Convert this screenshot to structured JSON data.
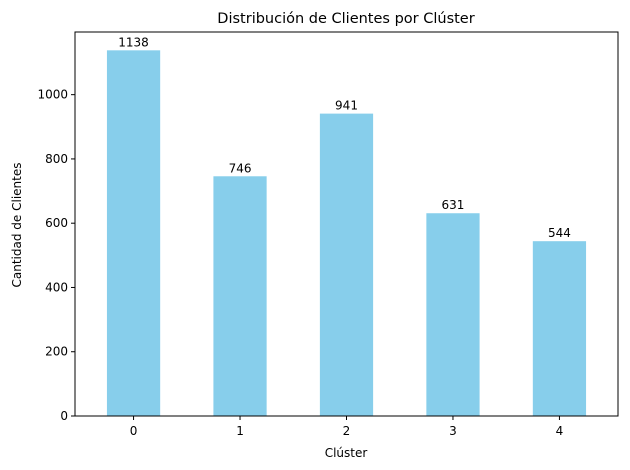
{
  "chart_data": {
    "type": "bar",
    "title": "Distribución de Clientes por Clúster",
    "xlabel": "Clúster",
    "ylabel": "Cantidad de Clientes",
    "categories": [
      "0",
      "1",
      "2",
      "3",
      "4"
    ],
    "values": [
      1138,
      746,
      941,
      631,
      544
    ],
    "data_labels": [
      "1138",
      "746",
      "941",
      "631",
      "544"
    ],
    "ylim": [
      0,
      1195
    ],
    "yticks": [
      0,
      200,
      400,
      600,
      800,
      1000
    ],
    "ytick_labels": [
      "0",
      "200",
      "400",
      "600",
      "800",
      "1000"
    ],
    "bar_color": "#87ceeb",
    "grid": false,
    "legend": "none"
  }
}
